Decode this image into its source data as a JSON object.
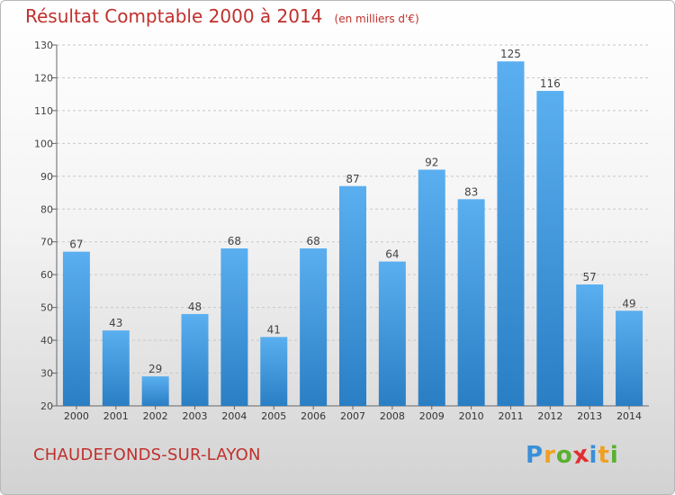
{
  "title": "Résultat Comptable 2000 à 2014",
  "unit": "(en milliers d'€)",
  "commune": "CHAUDEFONDS-SUR-LAYON",
  "logo": {
    "letters": [
      "P",
      "r",
      "o",
      "x",
      "i",
      "t",
      "i"
    ],
    "colors": [
      "#3a8fd8",
      "#f0a020",
      "#5ab030",
      "#e03030",
      "#3a8fd8",
      "#f0a020",
      "#5ab030"
    ]
  },
  "colors": {
    "bar_light": "#5aaff0",
    "bar_dark": "#2a7ec4",
    "title": "#c0302c"
  },
  "chart_data": {
    "type": "bar",
    "categories": [
      "2000",
      "2001",
      "2002",
      "2003",
      "2004",
      "2005",
      "2006",
      "2007",
      "2008",
      "2009",
      "2010",
      "2011",
      "2012",
      "2013",
      "2014"
    ],
    "values": [
      67,
      43,
      29,
      48,
      68,
      41,
      68,
      87,
      64,
      92,
      83,
      125,
      116,
      57,
      49
    ],
    "ylim": [
      20,
      130
    ],
    "yticks": [
      20,
      30,
      40,
      50,
      60,
      70,
      80,
      90,
      100,
      110,
      120,
      130
    ],
    "grid": true
  }
}
